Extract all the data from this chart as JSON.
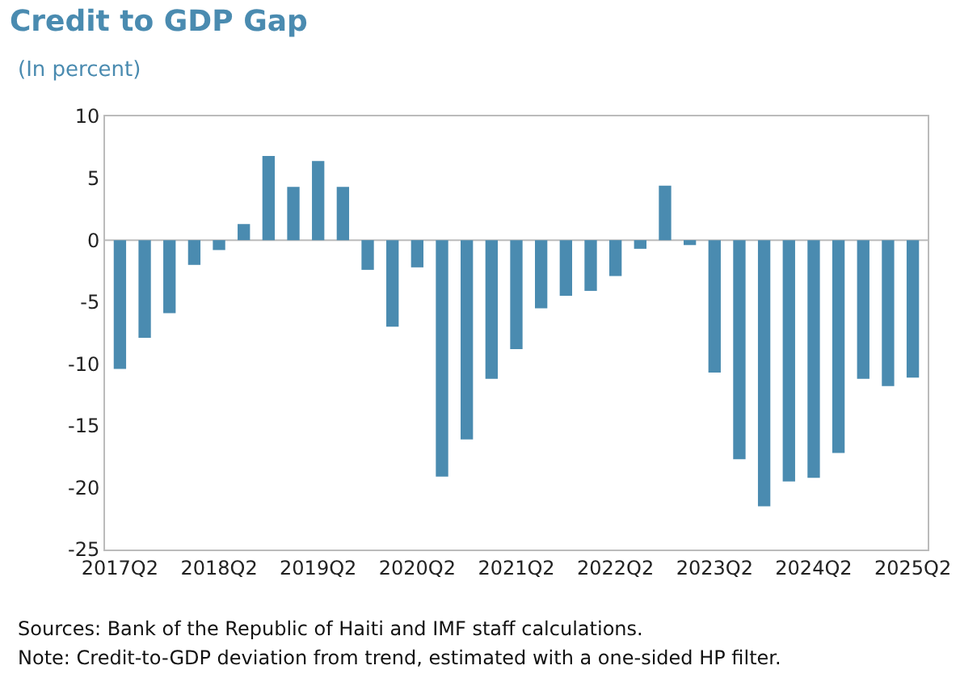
{
  "chart_data": {
    "type": "bar",
    "title": "Credit to GDP Gap",
    "subtitle": "(In percent)",
    "categories": [
      "2017Q2",
      null,
      null,
      null,
      "2018Q2",
      null,
      null,
      null,
      "2019Q2",
      null,
      null,
      null,
      "2020Q2",
      null,
      null,
      null,
      "2021Q2",
      null,
      null,
      null,
      "2022Q2",
      null,
      null,
      null,
      "2023Q2",
      null,
      null,
      null,
      "2024Q2",
      null,
      null,
      null,
      "2025Q2"
    ],
    "values": [
      -10.4,
      -7.9,
      -5.9,
      -2.0,
      -0.8,
      1.3,
      6.8,
      4.3,
      6.4,
      4.3,
      -2.4,
      -7.0,
      -2.2,
      -19.1,
      -16.1,
      -11.2,
      -8.8,
      -5.5,
      -4.5,
      -4.1,
      -2.9,
      -0.7,
      4.4,
      -0.4,
      -10.7,
      -17.7,
      -21.5,
      -19.5,
      -19.2,
      -17.2,
      -11.2,
      -11.8,
      -11.1
    ],
    "color": "#4a8bb0",
    "ylim": [
      -25,
      10
    ],
    "yticks": [
      -25,
      -20,
      -15,
      -10,
      -5,
      0,
      5,
      10
    ],
    "grid": false,
    "ref_lines": [
      {
        "axis": "y",
        "value": 0,
        "color": "#bbbbbb"
      }
    ],
    "annotations": [
      "Sources: Bank of the Republic of Haiti and IMF staff calculations.",
      "Note: Credit-to-GDP deviation from trend, estimated with a one-sided HP filter."
    ]
  }
}
